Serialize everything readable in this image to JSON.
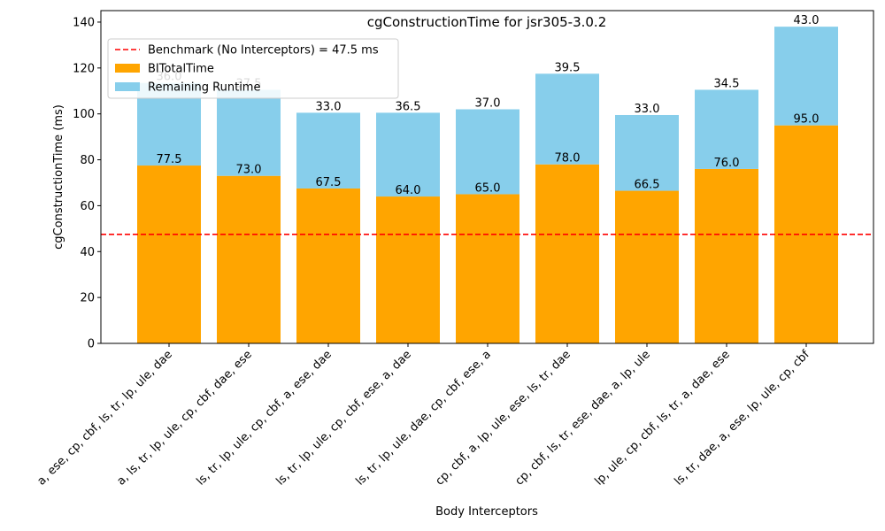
{
  "chart_data": {
    "type": "bar",
    "stacked": true,
    "title": "cgConstructionTime for jsr305-3.0.2",
    "xlabel": "Body Interceptors",
    "ylabel": "cgConstructionTime (ms)",
    "ylim": [
      0,
      145
    ],
    "yticks": [
      0,
      20,
      40,
      60,
      80,
      100,
      120,
      140
    ],
    "grid": false,
    "legend_position": "top-left",
    "categories": [
      "a, ese, cp, cbf, ls, tr, lp, ule, dae",
      "a, ls, tr, lp, ule, cp, cbf, dae, ese",
      "ls, tr, lp, ule, cp, cbf, a, ese, dae",
      "ls, tr, lp, ule, cp, cbf, ese, a, dae",
      "ls, tr, lp, ule, dae, cp, cbf, ese, a",
      "cp, cbf, a, lp, ule, ese, ls, tr, dae",
      "cp, cbf, ls, tr, ese, dae, a, lp, ule",
      "lp, ule, cp, cbf, ls, tr, a, dae, ese",
      "ls, tr, dae, a, ese, lp, ule, cp, cbf"
    ],
    "series": [
      {
        "name": "BITotalTime",
        "color": "#ffa500",
        "values": [
          77.5,
          73.0,
          67.5,
          64.0,
          65.0,
          78.0,
          66.5,
          76.0,
          95.0
        ],
        "labels": [
          "77.5",
          "73.0",
          "67.5",
          "64.0",
          "65.0",
          "78.0",
          "66.5",
          "76.0",
          "95.0"
        ]
      },
      {
        "name": "Remaining Runtime",
        "color": "#87ceeb",
        "values": [
          36.0,
          37.5,
          33.0,
          36.5,
          37.0,
          39.5,
          33.0,
          34.5,
          43.0
        ],
        "labels": [
          "36.0",
          "37.5",
          "33.0",
          "36.5",
          "37.0",
          "39.5",
          "33.0",
          "34.5",
          "43.0"
        ]
      }
    ],
    "reference_line": {
      "name": "Benchmark (No Interceptors) = 47.5 ms",
      "value": 47.5,
      "color": "#ff0000",
      "style": "dashed"
    }
  }
}
